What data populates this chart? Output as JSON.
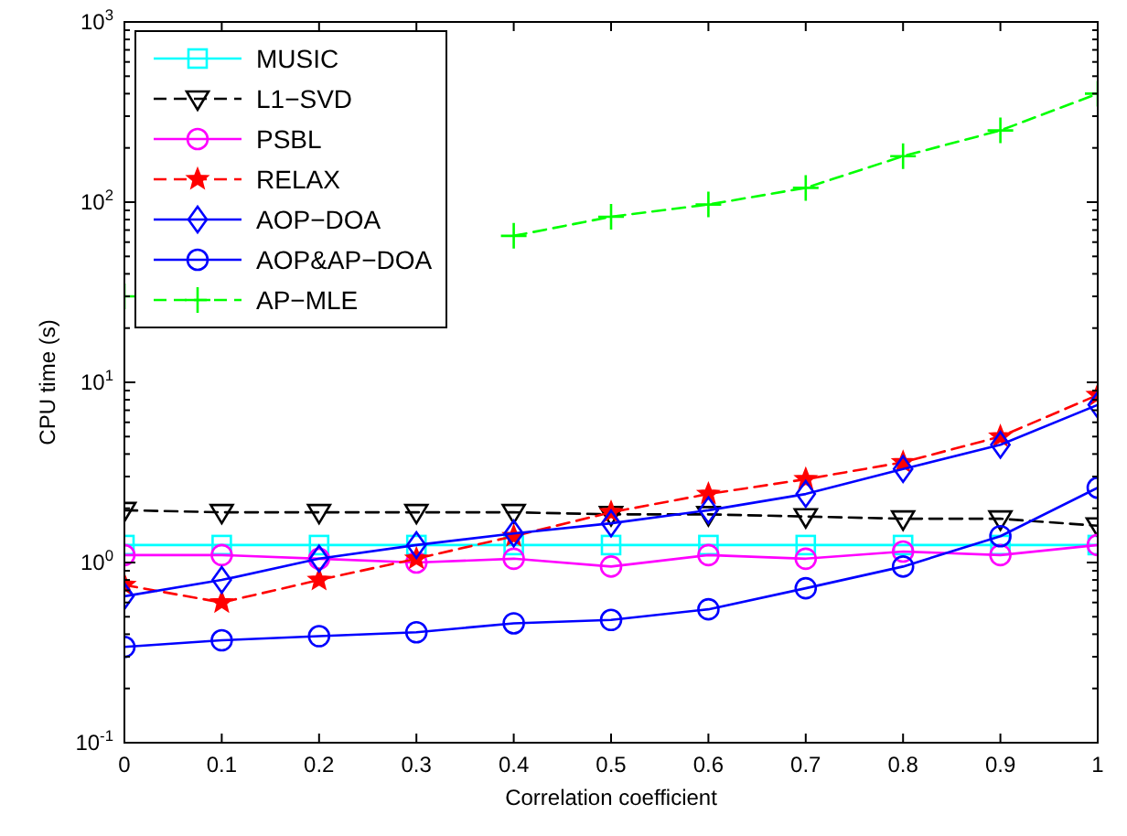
{
  "chart_data": {
    "type": "line",
    "xlabel": "Correlation coefficient",
    "ylabel": "CPU time (s)",
    "x": [
      0,
      0.1,
      0.2,
      0.3,
      0.4,
      0.5,
      0.6,
      0.7,
      0.8,
      0.9,
      1
    ],
    "xlim": [
      0,
      1
    ],
    "xticks": [
      0,
      0.1,
      0.2,
      0.3,
      0.4,
      0.5,
      0.6,
      0.7,
      0.8,
      0.9,
      1
    ],
    "ylim": [
      0.1,
      1000
    ],
    "log": "y",
    "yticks": [
      {
        "value": 0.1,
        "label": "10$^{-1}$"
      },
      {
        "value": 0.2,
        "label": null
      },
      {
        "value": 0.3,
        "label": null
      },
      {
        "value": 0.4,
        "label": null
      },
      {
        "value": 0.5,
        "label": null
      },
      {
        "value": 0.6,
        "label": null
      },
      {
        "value": 0.7,
        "label": null
      },
      {
        "value": 0.8,
        "label": null
      },
      {
        "value": 0.9,
        "label": null
      },
      {
        "value": 1,
        "label": "10$^{0}$"
      },
      {
        "value": 2,
        "label": null
      },
      {
        "value": 3,
        "label": null
      },
      {
        "value": 4,
        "label": null
      },
      {
        "value": 5,
        "label": null
      },
      {
        "value": 6,
        "label": null
      },
      {
        "value": 7,
        "label": null
      },
      {
        "value": 8,
        "label": null
      },
      {
        "value": 9,
        "label": null
      },
      {
        "value": 10,
        "label": "10$^{1}$"
      },
      {
        "value": 20,
        "label": null
      },
      {
        "value": 30,
        "label": null
      },
      {
        "value": 40,
        "label": null
      },
      {
        "value": 50,
        "label": null
      },
      {
        "value": 60,
        "label": null
      },
      {
        "value": 70,
        "label": null
      },
      {
        "value": 80,
        "label": null
      },
      {
        "value": 90,
        "label": null
      },
      {
        "value": 100,
        "label": "10$^{2}$"
      },
      {
        "value": 200,
        "label": null
      },
      {
        "value": 300,
        "label": null
      },
      {
        "value": 400,
        "label": null
      },
      {
        "value": 500,
        "label": null
      },
      {
        "value": 600,
        "label": null
      },
      {
        "value": 700,
        "label": null
      },
      {
        "value": 800,
        "label": null
      },
      {
        "value": 900,
        "label": null
      },
      {
        "value": 1000,
        "label": "10$^{3}$"
      }
    ],
    "grid": false,
    "legend": "top left",
    "series": [
      {
        "name": "MUSIC",
        "color": "#00ffff",
        "marker": "square",
        "line_style": "solid",
        "values": [
          1.25,
          1.25,
          1.25,
          1.25,
          1.25,
          1.25,
          1.25,
          1.25,
          1.25,
          1.25,
          1.25
        ]
      },
      {
        "name": "L1−SVD",
        "color": "#000000",
        "marker": "triangle",
        "line_style": "dashed",
        "values": [
          1.95,
          1.9,
          1.9,
          1.9,
          1.9,
          1.85,
          1.85,
          1.8,
          1.75,
          1.75,
          1.6
        ]
      },
      {
        "name": "PSBL",
        "color": "#ff00ff",
        "marker": "circle",
        "line_style": "solid",
        "values": [
          1.1,
          1.1,
          1.05,
          1.0,
          1.05,
          0.95,
          1.1,
          1.05,
          1.15,
          1.1,
          1.25
        ]
      },
      {
        "name": "RELAX",
        "color": "#ff0000",
        "marker": "star",
        "line_style": "dashed",
        "values": [
          0.75,
          0.6,
          0.8,
          1.05,
          1.4,
          1.9,
          2.4,
          2.9,
          3.6,
          5.0,
          8.5
        ]
      },
      {
        "name": "AOP−DOA",
        "color": "#0000ff",
        "marker": "diamond",
        "line_style": "solid",
        "values": [
          0.65,
          0.8,
          1.05,
          1.25,
          1.45,
          1.65,
          1.95,
          2.4,
          3.3,
          4.5,
          7.5
        ]
      },
      {
        "name": "AOP&AP−DOA",
        "color": "#0000ff",
        "marker": "circle",
        "line_style": "solid",
        "values": [
          0.34,
          0.37,
          0.39,
          0.41,
          0.46,
          0.48,
          0.55,
          0.72,
          0.95,
          1.4,
          2.6
        ]
      },
      {
        "name": "AP−MLE",
        "color": "#00ff00",
        "marker": "cross",
        "line_style": "dashed",
        "values": [
          30,
          null,
          null,
          null,
          65,
          83,
          97,
          120,
          180,
          250,
          400
        ]
      }
    ]
  }
}
